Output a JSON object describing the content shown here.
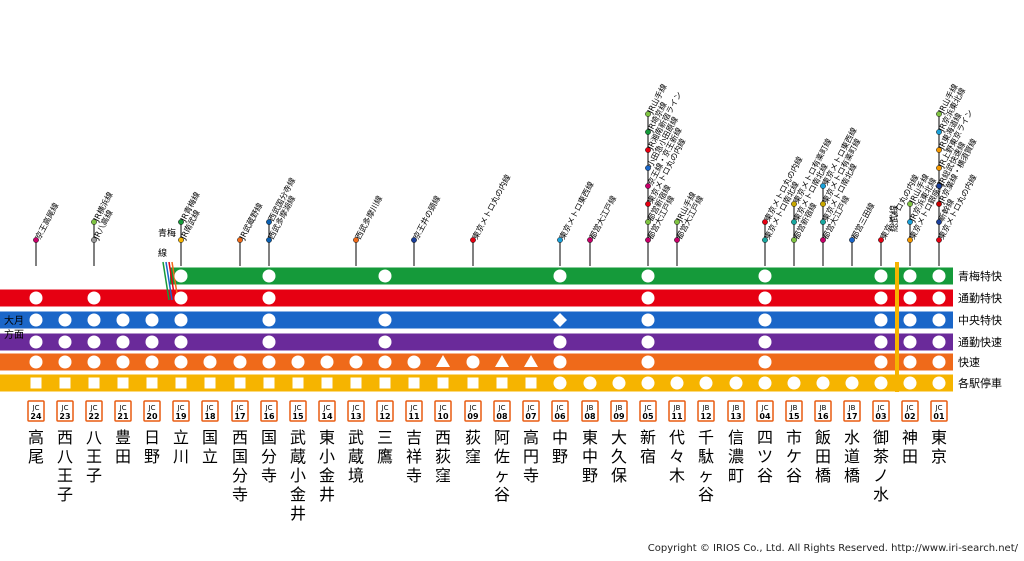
{
  "colors": {
    "ome_rapid": "#159a3a",
    "commuter_special": "#e60012",
    "chuo_special": "#1a66c8",
    "commuter_rapid": "#6a2a9a",
    "rapid": "#ef6a1a",
    "local": "#f6b400",
    "ome_branch": "#159a3a",
    "sobu": "#f6b400",
    "badge": "#e85b10"
  },
  "service_labels": [
    "青梅特快",
    "通勤特快",
    "中央特快",
    "通勤快速",
    "快速",
    "各駅停車"
  ],
  "direction_label": "大月方面",
  "ome_branch_label": "青梅線",
  "sobu_label": "総武線",
  "stations": [
    {
      "code": "JC 24",
      "name": "高尾",
      "transfers": [
        {
          "label": "京王高尾線",
          "color": "#c8006a"
        }
      ],
      "stops": {
        "ome": null,
        "cs": "circle",
        "chs": "circle",
        "cr": "circle",
        "rapid": "circle",
        "local": "square"
      }
    },
    {
      "code": "JC 23",
      "name": "西八王子",
      "transfers": [],
      "stops": {
        "ome": null,
        "cs": null,
        "chs": "circle",
        "cr": "circle",
        "rapid": "circle",
        "local": "square"
      }
    },
    {
      "code": "JC 22",
      "name": "八王子",
      "transfers": [
        {
          "label": "JR横浜線",
          "color": "#7fc342"
        },
        {
          "label": "JR八高線",
          "color": "#999999"
        }
      ],
      "stops": {
        "ome": null,
        "cs": "circle",
        "chs": "circle",
        "cr": "circle",
        "rapid": "circle",
        "local": "square"
      }
    },
    {
      "code": "JC 21",
      "name": "豊田",
      "transfers": [],
      "stops": {
        "ome": null,
        "cs": null,
        "chs": "circle",
        "cr": "circle",
        "rapid": "circle",
        "local": "square"
      }
    },
    {
      "code": "JC 20",
      "name": "日野",
      "transfers": [],
      "stops": {
        "ome": null,
        "cs": null,
        "chs": "circle",
        "cr": "circle",
        "rapid": "circle",
        "local": "square"
      }
    },
    {
      "code": "JC 19",
      "name": "立川",
      "transfers": [
        {
          "label": "JR青梅線",
          "color": "#159a3a"
        },
        {
          "label": "JR南武線",
          "color": "#f6b400"
        }
      ],
      "stops": {
        "ome": "circle",
        "cs": "circle",
        "chs": "circle",
        "cr": "circle",
        "rapid": "circle",
        "local": "square"
      }
    },
    {
      "code": "JC 18",
      "name": "国立",
      "transfers": [],
      "stops": {
        "ome": null,
        "cs": null,
        "chs": null,
        "cr": null,
        "rapid": "circle",
        "local": "square"
      }
    },
    {
      "code": "JC 17",
      "name": "西国分寺",
      "transfers": [
        {
          "label": "JR武蔵野線",
          "color": "#ef6a1a"
        }
      ],
      "stops": {
        "ome": null,
        "cs": null,
        "chs": null,
        "cr": null,
        "rapid": "circle",
        "local": "square"
      }
    },
    {
      "code": "JC 16",
      "name": "国分寺",
      "transfers": [
        {
          "label": "西武国分寺線",
          "color": "#0a5fb0"
        },
        {
          "label": "西武多摩湖線",
          "color": "#0a5fb0"
        }
      ],
      "stops": {
        "ome": "circle",
        "cs": "circle",
        "chs": "circle",
        "cr": "circle",
        "rapid": "circle",
        "local": "square"
      }
    },
    {
      "code": "JC 15",
      "name": "武蔵小金井",
      "transfers": [],
      "stops": {
        "ome": null,
        "cs": null,
        "chs": null,
        "cr": null,
        "rapid": "circle",
        "local": "square"
      }
    },
    {
      "code": "JC 14",
      "name": "東小金井",
      "transfers": [],
      "stops": {
        "ome": null,
        "cs": null,
        "chs": null,
        "cr": null,
        "rapid": "circle",
        "local": "square"
      }
    },
    {
      "code": "JC 13",
      "name": "武蔵境",
      "transfers": [
        {
          "label": "西武多摩川線",
          "color": "#ef6a1a"
        }
      ],
      "stops": {
        "ome": null,
        "cs": null,
        "chs": null,
        "cr": null,
        "rapid": "circle",
        "local": "square"
      }
    },
    {
      "code": "JC 12",
      "name": "三鷹",
      "transfers": [],
      "stops": {
        "ome": "circle",
        "cs": null,
        "chs": "circle",
        "cr": "circle",
        "rapid": "circle",
        "local": "square"
      }
    },
    {
      "code": "JC 11",
      "name": "吉祥寺",
      "transfers": [
        {
          "label": "京王井の頭線",
          "color": "#1a3f9a"
        }
      ],
      "stops": {
        "ome": null,
        "cs": null,
        "chs": null,
        "cr": null,
        "rapid": "circle",
        "local": "square"
      }
    },
    {
      "code": "JC 10",
      "name": "西荻窪",
      "transfers": [],
      "stops": {
        "ome": null,
        "cs": null,
        "chs": null,
        "cr": null,
        "rapid": "triangle",
        "local": "square"
      }
    },
    {
      "code": "JC 09",
      "name": "荻窪",
      "transfers": [
        {
          "label": "東京メトロ丸の内線",
          "color": "#e60012"
        }
      ],
      "stops": {
        "ome": null,
        "cs": null,
        "chs": null,
        "cr": null,
        "rapid": "circle",
        "local": "square"
      }
    },
    {
      "code": "JC 08",
      "name": "阿佐ヶ谷",
      "transfers": [],
      "stops": {
        "ome": null,
        "cs": null,
        "chs": null,
        "cr": null,
        "rapid": "triangle",
        "local": "square"
      }
    },
    {
      "code": "JC 07",
      "name": "高円寺",
      "transfers": [],
      "stops": {
        "ome": null,
        "cs": null,
        "chs": null,
        "cr": null,
        "rapid": "triangle",
        "local": "square"
      }
    },
    {
      "code": "JC 06",
      "name": "中野",
      "transfers": [
        {
          "label": "東京メトロ東西線",
          "color": "#1aa0d8"
        }
      ],
      "stops": {
        "ome": "circle",
        "cs": null,
        "chs": "diamond",
        "cr": "circle",
        "rapid": "circle",
        "local": "circle"
      }
    },
    {
      "code": "JB 08",
      "name": "東中野",
      "transfers": [
        {
          "label": "都営大江戸線",
          "color": "#c8006a"
        }
      ],
      "stops": {
        "ome": null,
        "cs": null,
        "chs": null,
        "cr": null,
        "rapid": null,
        "local": "circle"
      }
    },
    {
      "code": "JB 09",
      "name": "大久保",
      "transfers": [],
      "stops": {
        "ome": null,
        "cs": null,
        "chs": null,
        "cr": null,
        "rapid": null,
        "local": "circle"
      }
    },
    {
      "code": "JC 05",
      "name": "新宿",
      "transfers": [
        {
          "label": "JR山手線",
          "color": "#7fc342"
        },
        {
          "label": "JR埼京線",
          "color": "#159a3a"
        },
        {
          "label": "JR湘南新宿ライン",
          "color": "#e60012"
        },
        {
          "label": "小田急小田原線",
          "color": "#1a66c8"
        },
        {
          "label": "京王線・京王新線",
          "color": "#c8006a"
        },
        {
          "label": "東京メトロ丸の内線",
          "color": "#e60012"
        },
        {
          "label": "都営新宿線",
          "color": "#7fc342"
        },
        {
          "label": "都営大江戸線",
          "color": "#c8006a"
        }
      ],
      "stops": {
        "ome": "circle",
        "cs": "circle",
        "chs": "circle",
        "cr": "circle",
        "rapid": "circle",
        "local": "circle"
      }
    },
    {
      "code": "JB 11",
      "name": "代々木",
      "transfers": [
        {
          "label": "JR山手線",
          "color": "#7fc342"
        },
        {
          "label": "都営大江戸線",
          "color": "#c8006a"
        }
      ],
      "stops": {
        "ome": null,
        "cs": null,
        "chs": null,
        "cr": null,
        "rapid": null,
        "local": "circle"
      }
    },
    {
      "code": "JB 12",
      "name": "千駄ヶ谷",
      "transfers": [],
      "stops": {
        "ome": null,
        "cs": null,
        "chs": null,
        "cr": null,
        "rapid": null,
        "local": "circle"
      }
    },
    {
      "code": "JB 13",
      "name": "信濃町",
      "transfers": [],
      "stops": {
        "ome": null,
        "cs": null,
        "chs": null,
        "cr": null,
        "rapid": null,
        "local": "circle"
      }
    },
    {
      "code": "JC 04",
      "name": "四ツ谷",
      "transfers": [
        {
          "label": "東京メトロ丸の内線",
          "color": "#e60012"
        },
        {
          "label": "東京メトロ南北線",
          "color": "#1aa8a0"
        }
      ],
      "stops": {
        "ome": "circle",
        "cs": "circle",
        "chs": "circle",
        "cr": "circle",
        "rapid": "circle",
        "local": "circle"
      }
    },
    {
      "code": "JB 15",
      "name": "市ケ谷",
      "transfers": [
        {
          "label": "東京メトロ有楽町線",
          "color": "#c8a800"
        },
        {
          "label": "東京メトロ南北線",
          "color": "#1aa8a0"
        },
        {
          "label": "都営新宿線",
          "color": "#7fc342"
        }
      ],
      "stops": {
        "ome": null,
        "cs": null,
        "chs": null,
        "cr": null,
        "rapid": null,
        "local": "circle"
      }
    },
    {
      "code": "JB 16",
      "name": "飯田橋",
      "transfers": [
        {
          "label": "東京メトロ東西線",
          "color": "#1aa0d8"
        },
        {
          "label": "東京メトロ有楽町線",
          "color": "#c8a800"
        },
        {
          "label": "東京メトロ南北線",
          "color": "#1aa8a0"
        },
        {
          "label": "都営大江戸線",
          "color": "#c8006a"
        }
      ],
      "stops": {
        "ome": null,
        "cs": null,
        "chs": null,
        "cr": null,
        "rapid": null,
        "local": "circle"
      }
    },
    {
      "code": "JB 17",
      "name": "水道橋",
      "transfers": [
        {
          "label": "都営三田線",
          "color": "#1a66c8"
        }
      ],
      "stops": {
        "ome": null,
        "cs": null,
        "chs": null,
        "cr": null,
        "rapid": null,
        "local": "circle"
      }
    },
    {
      "code": "JC 03",
      "name": "御茶ノ水",
      "transfers": [
        {
          "label": "東京メトロ丸の内線",
          "color": "#e60012"
        }
      ],
      "stops": {
        "ome": "circle",
        "cs": "circle",
        "chs": "circle",
        "cr": "circle",
        "rapid": "circle",
        "local": "circle"
      }
    },
    {
      "code": "JC 02",
      "name": "神田",
      "transfers": [
        {
          "label": "JR山手線",
          "color": "#7fc342"
        },
        {
          "label": "JR京浜東北線",
          "color": "#1aa0d8"
        },
        {
          "label": "東京メトロ銀座線",
          "color": "#f39800"
        }
      ],
      "stops": {
        "ome": "circle",
        "cs": "circle",
        "chs": "circle",
        "cr": "circle",
        "rapid": "circle",
        "local": "circle"
      }
    },
    {
      "code": "JC 01",
      "name": "東京",
      "transfers": [
        {
          "label": "JR山手線",
          "color": "#7fc342"
        },
        {
          "label": "JR京浜東北線",
          "color": "#1aa0d8"
        },
        {
          "label": "JR東海道線",
          "color": "#f39800"
        },
        {
          "label": "JR上野東京ライン",
          "color": "#f39800"
        },
        {
          "label": "JR総武快速線",
          "color": "#1a3f9a"
        },
        {
          "label": "JR京葉線・横須賀線",
          "color": "#c80000"
        },
        {
          "label": "新幹線",
          "color": "#1a3f9a"
        },
        {
          "label": "東京メトロ丸の内線",
          "color": "#e60012"
        }
      ],
      "stops": {
        "ome": "circle",
        "cs": "circle",
        "chs": "circle",
        "cr": "circle",
        "rapid": "circle",
        "local": "circle"
      }
    }
  ],
  "copyright": "Copyright © IRIOS Co., Ltd. All Rights Reserved.  http://www.iri-search.net/"
}
